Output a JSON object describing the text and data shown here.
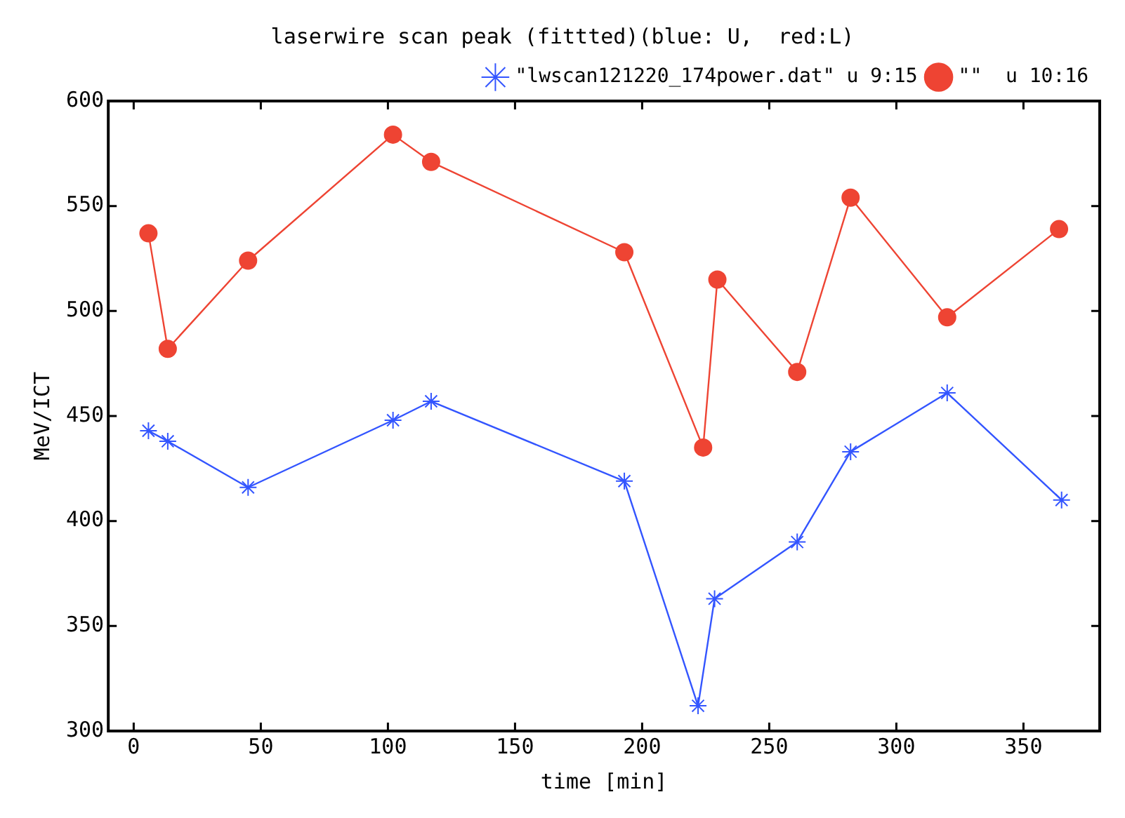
{
  "chart_data": {
    "type": "line",
    "title": "laserwire scan peak (fittted)(blue: U,  red:L)",
    "xlabel": "time [min]",
    "ylabel": "MeV/ICT",
    "xlim": [
      -10,
      380
    ],
    "xticks": [
      0,
      50,
      100,
      150,
      200,
      250,
      300,
      350
    ],
    "ylim": [
      300,
      600
    ],
    "yticks": [
      300,
      350,
      400,
      450,
      500,
      550,
      600
    ],
    "legend": "top right",
    "series": [
      {
        "name": "\"lwscan121220_174power.dat\" u 9:15",
        "color": "#3355ff",
        "marker": "cross",
        "x": [
          5.8,
          13.4,
          45,
          102,
          117,
          193,
          222,
          228.5,
          261,
          282,
          320,
          365
        ],
        "values": [
          443,
          438,
          416,
          448,
          457,
          419,
          312,
          363,
          390,
          433,
          461,
          410
        ]
      },
      {
        "name": "\"\"  u 10:16",
        "color": "#ee4433",
        "marker": "circle",
        "x": [
          5.8,
          13.4,
          45,
          102,
          117,
          193,
          224,
          229.6,
          261,
          282,
          320,
          364
        ],
        "values": [
          537,
          482,
          524,
          584,
          571,
          528,
          435,
          515,
          471,
          554,
          497,
          539
        ]
      }
    ]
  }
}
